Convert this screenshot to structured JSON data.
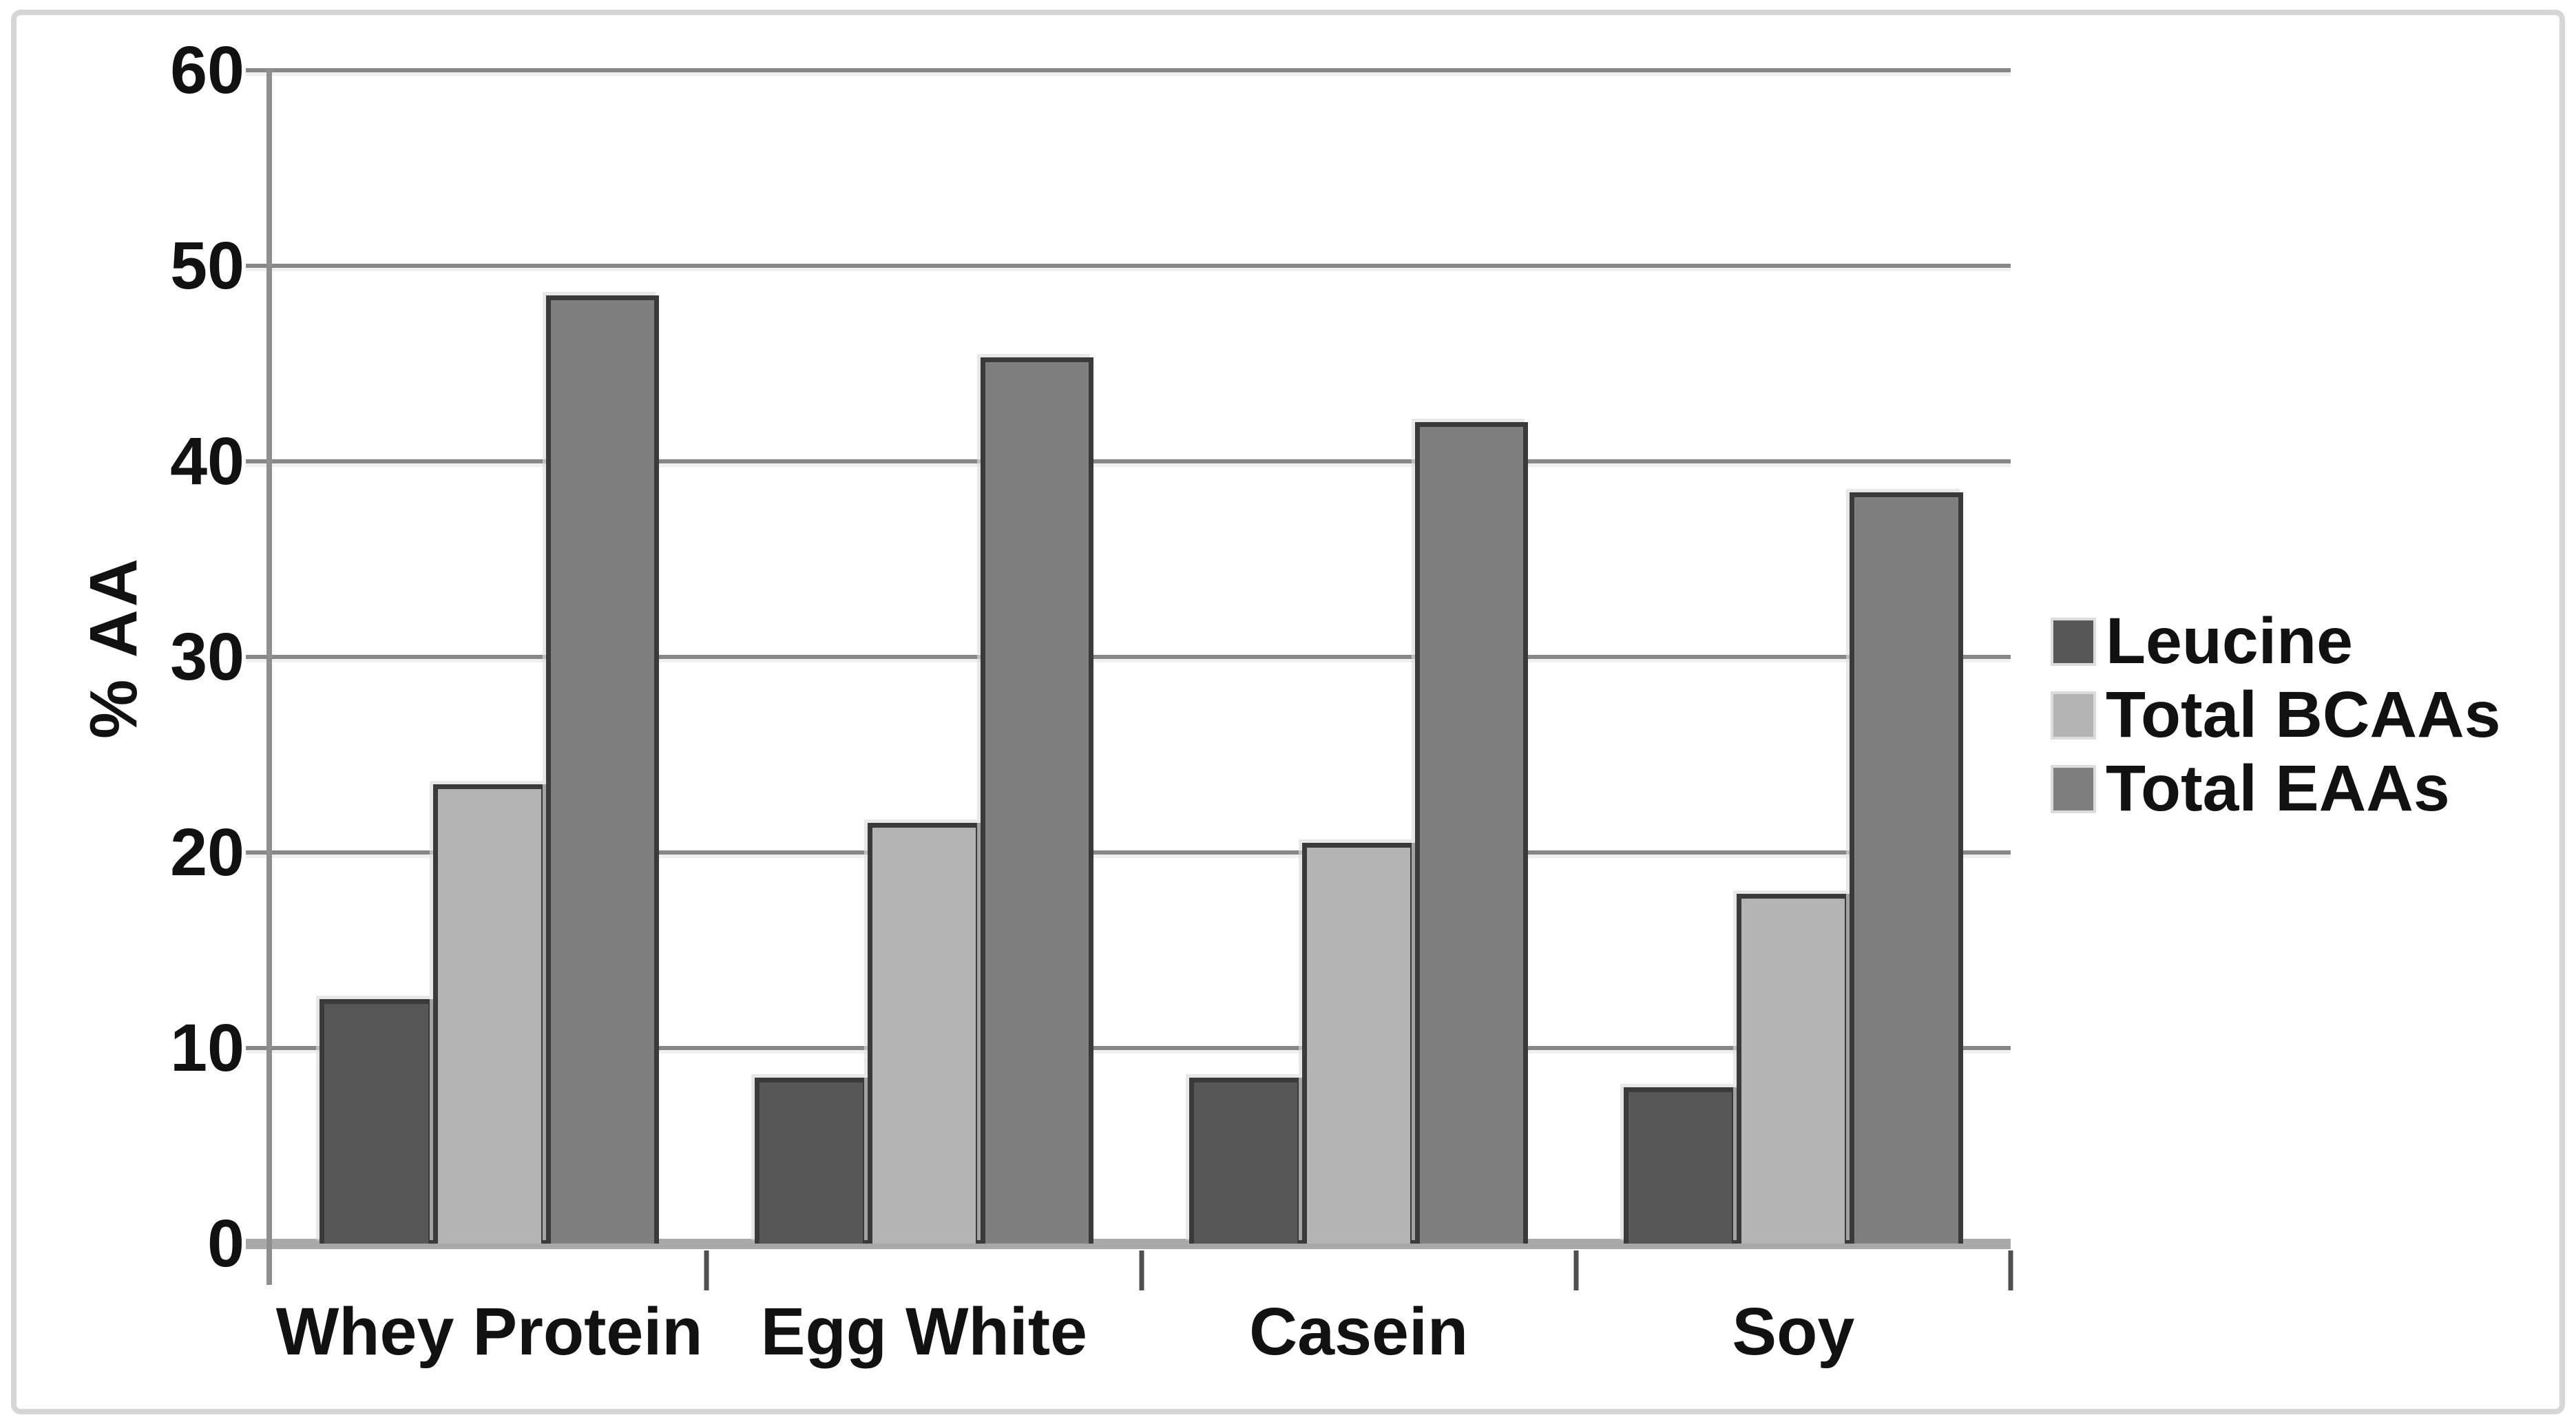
{
  "chart_data": {
    "type": "bar",
    "title": "",
    "xlabel": "",
    "ylabel": "% AA",
    "ylim": [
      0,
      60
    ],
    "yticks": [
      0,
      10,
      20,
      30,
      40,
      50,
      60
    ],
    "grid": true,
    "legend_position": "right",
    "categories": [
      "Whey Protein",
      "Egg White",
      "Casein",
      "Soy"
    ],
    "series": [
      {
        "name": "Leucine",
        "color": "#575757",
        "values": [
          12.5,
          8.5,
          8.5,
          8.0
        ]
      },
      {
        "name": "Total BCAAs",
        "color": "#b4b4b4",
        "values": [
          23.5,
          21.5,
          20.5,
          17.9
        ]
      },
      {
        "name": "Total EAAs",
        "color": "#7f7f7f",
        "values": [
          48.5,
          45.3,
          42.0,
          38.4
        ]
      }
    ],
    "colors": {
      "bar_border": "#3a3a3a",
      "gridline": "#878787",
      "baseline": "#a9a9a9",
      "axis_line": "#8f8f8f",
      "category_tick": "#4f4f4f",
      "text": "#111111",
      "frame_border": "#d6d6d6",
      "background": "#ffffff"
    }
  }
}
